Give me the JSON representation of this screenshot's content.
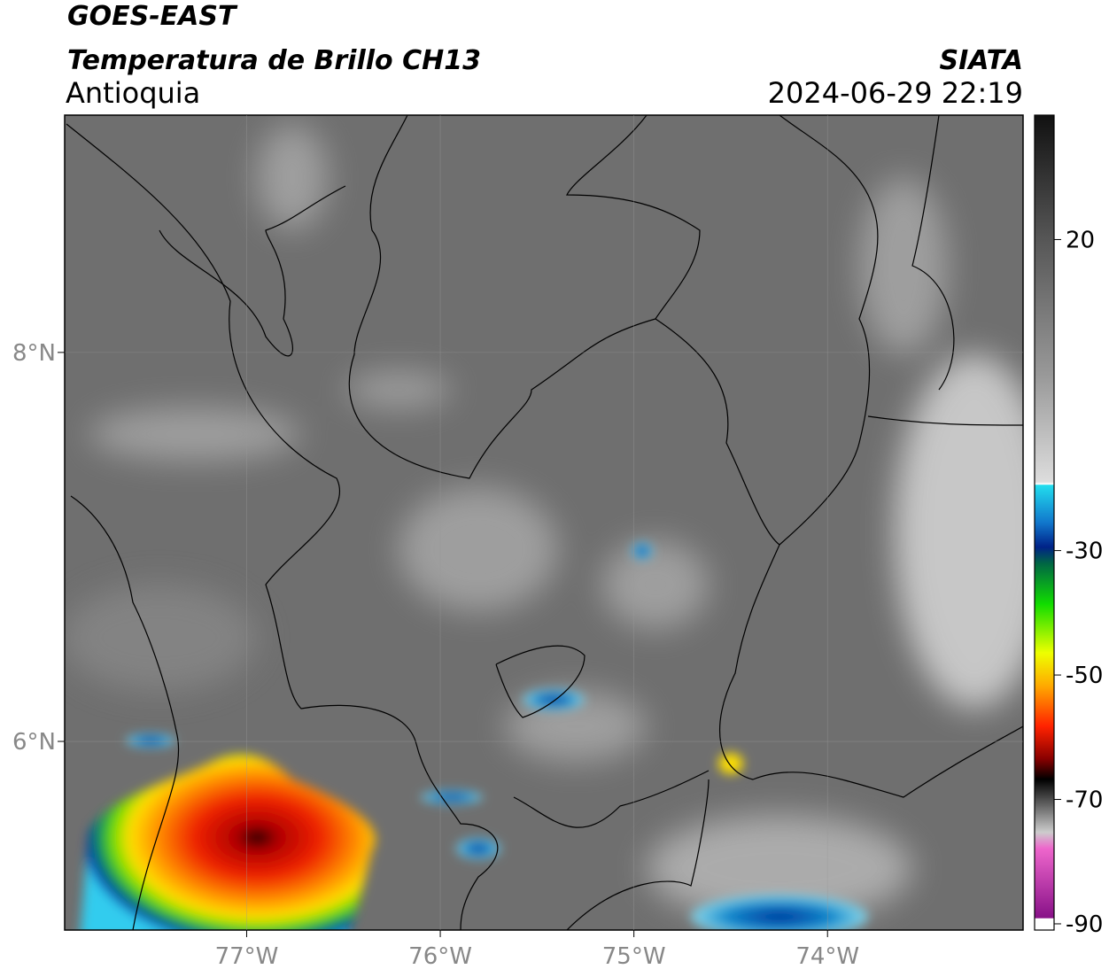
{
  "header": {
    "title": "GOES-EAST",
    "subtitle": "Temperatura de Brillo CH13",
    "region": "Antioquia",
    "source": "SIATA",
    "datetime": "2024-06-29 22:19"
  },
  "map": {
    "xlim": [
      -77.94,
      -72.99
    ],
    "ylim": [
      5.03,
      9.22
    ],
    "xticks": [
      {
        "value": -77,
        "label": "77°W"
      },
      {
        "value": -76,
        "label": "76°W"
      },
      {
        "value": -75,
        "label": "75°W"
      },
      {
        "value": -74,
        "label": "74°W"
      }
    ],
    "yticks": [
      {
        "value": 8,
        "label": "8°N"
      },
      {
        "value": 6,
        "label": "6°N"
      }
    ]
  },
  "colorbar": {
    "lim": [
      -91,
      40
    ],
    "ticks": [
      20,
      -30,
      -50,
      -70,
      -90
    ]
  }
}
